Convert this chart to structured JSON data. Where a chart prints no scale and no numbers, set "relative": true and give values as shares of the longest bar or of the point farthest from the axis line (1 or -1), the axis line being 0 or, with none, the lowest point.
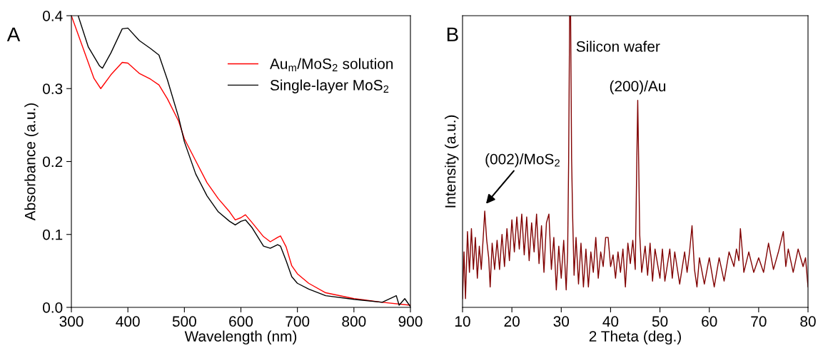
{
  "chart_data": [
    {
      "type": "line",
      "title": "A",
      "xlabel": "Wavelength (nm)",
      "ylabel": "Absorbance (a.u.)",
      "xlim": [
        300,
        900
      ],
      "xticks": [
        300,
        400,
        500,
        600,
        700,
        800,
        900
      ],
      "ylim": [
        0,
        0.4
      ],
      "yticks": [
        {
          "value": 0,
          "label": "0.0"
        },
        0.1,
        0.2,
        0.3,
        0.4
      ],
      "legend": "top right",
      "grid": false,
      "series": [
        {
          "name": "Au$_{m}$/MoS$_{2}$ solution",
          "color": "#ff0000",
          "x": [
            300,
            320,
            340,
            352,
            370,
            390,
            400,
            420,
            440,
            455,
            470,
            490,
            500,
            520,
            540,
            560,
            580,
            590,
            600,
            608,
            620,
            640,
            652,
            665,
            670,
            680,
            690,
            700,
            720,
            750,
            800,
            850,
            900
          ],
          "values": [
            0.4,
            0.357,
            0.314,
            0.3,
            0.319,
            0.336,
            0.335,
            0.321,
            0.313,
            0.305,
            0.286,
            0.255,
            0.231,
            0.201,
            0.171,
            0.149,
            0.131,
            0.12,
            0.123,
            0.127,
            0.116,
            0.097,
            0.09,
            0.096,
            0.098,
            0.083,
            0.057,
            0.046,
            0.033,
            0.02,
            0.012,
            0.007,
            0.003
          ]
        },
        {
          "name": "Single-layer MoS$_{2}$",
          "color": "#000000",
          "x": [
            312,
            330,
            350,
            355,
            370,
            390,
            400,
            420,
            440,
            455,
            470,
            490,
            500,
            520,
            540,
            560,
            580,
            590,
            600,
            608,
            620,
            640,
            652,
            665,
            670,
            680,
            690,
            700,
            720,
            750,
            800,
            850,
            875,
            880,
            890,
            900
          ],
          "values": [
            0.4,
            0.357,
            0.331,
            0.328,
            0.349,
            0.382,
            0.383,
            0.366,
            0.355,
            0.346,
            0.312,
            0.26,
            0.227,
            0.183,
            0.153,
            0.131,
            0.118,
            0.113,
            0.118,
            0.12,
            0.109,
            0.084,
            0.081,
            0.086,
            0.084,
            0.064,
            0.042,
            0.033,
            0.025,
            0.016,
            0.011,
            0.007,
            0.016,
            0.003,
            0.012,
            0.001
          ]
        }
      ]
    },
    {
      "type": "line",
      "title": "B",
      "xlabel": "2 Theta (deg.)",
      "ylabel": "Intensity (a.u.)",
      "xlim": [
        10,
        80
      ],
      "xticks": [
        10,
        20,
        30,
        40,
        50,
        60,
        70,
        80
      ],
      "relative": true,
      "tick_labels": "x",
      "grid": false,
      "legend": false,
      "annotations": [
        "Silicon wafer",
        {
          "text": "(200)/Au",
          "x": 45.5,
          "y": 0.71
        },
        {
          "text": "(002)/MoS$_{2}$",
          "x": 14.5,
          "y": 0.33
        }
      ],
      "series": [
        {
          "color": "#800000",
          "x": [
            10.0,
            10.3,
            10.6,
            11.0,
            11.4,
            11.8,
            12.2,
            12.6,
            13.0,
            13.4,
            13.8,
            14.3,
            14.5,
            14.9,
            15.3,
            15.6,
            16.0,
            16.5,
            17.0,
            17.5,
            18.0,
            18.5,
            19.0,
            19.5,
            20.0,
            20.5,
            21.0,
            21.5,
            22.0,
            22.5,
            23.0,
            23.5,
            24.0,
            24.5,
            25.0,
            25.5,
            26.0,
            26.5,
            27.0,
            27.5,
            28.0,
            28.5,
            29.0,
            29.5,
            30.0,
            30.5,
            31.0,
            31.3,
            31.5,
            31.7,
            31.9,
            32.1,
            32.3,
            32.6,
            33.0,
            33.5,
            34.0,
            34.5,
            35.0,
            35.5,
            36.0,
            36.5,
            37.0,
            37.5,
            38.0,
            38.5,
            39.0,
            39.5,
            40.0,
            40.5,
            41.0,
            41.5,
            42.0,
            42.5,
            43.0,
            43.5,
            44.0,
            44.5,
            45.0,
            45.3,
            45.5,
            45.7,
            45.9,
            46.3,
            47.0,
            47.5,
            48.0,
            48.5,
            49.0,
            50.0,
            50.5,
            51.0,
            52.0,
            52.5,
            53.0,
            54.0,
            55.0,
            55.5,
            56.0,
            56.5,
            57.0,
            57.5,
            58.0,
            59.0,
            60.0,
            61.0,
            62.0,
            63.0,
            64.0,
            65.0,
            65.5,
            66.0,
            66.3,
            66.7,
            67.0,
            68.0,
            69.0,
            70.0,
            71.0,
            72.0,
            73.0,
            74.0,
            75.0,
            75.5,
            76.0,
            77.0,
            78.0,
            79.0,
            79.5,
            80.0
          ],
          "values": [
            0.03,
            0.19,
            0.03,
            0.26,
            0.12,
            0.27,
            0.13,
            0.24,
            0.1,
            0.21,
            0.13,
            0.27,
            0.33,
            0.23,
            0.17,
            0.07,
            0.22,
            0.13,
            0.23,
            0.13,
            0.25,
            0.14,
            0.27,
            0.16,
            0.3,
            0.19,
            0.31,
            0.2,
            0.32,
            0.18,
            0.31,
            0.16,
            0.29,
            0.19,
            0.32,
            0.15,
            0.28,
            0.12,
            0.29,
            0.32,
            0.13,
            0.24,
            0.06,
            0.21,
            0.1,
            0.23,
            0.06,
            0.19,
            0.5,
            1.0,
            1.0,
            0.51,
            0.32,
            0.11,
            0.24,
            0.08,
            0.22,
            0.07,
            0.2,
            0.07,
            0.19,
            0.12,
            0.24,
            0.1,
            0.19,
            0.14,
            0.24,
            0.24,
            0.14,
            0.18,
            0.1,
            0.19,
            0.12,
            0.2,
            0.07,
            0.22,
            0.15,
            0.23,
            0.13,
            0.49,
            0.71,
            0.49,
            0.25,
            0.12,
            0.21,
            0.11,
            0.22,
            0.09,
            0.2,
            0.1,
            0.2,
            0.09,
            0.2,
            0.1,
            0.19,
            0.08,
            0.19,
            0.12,
            0.19,
            0.28,
            0.13,
            0.07,
            0.17,
            0.08,
            0.17,
            0.07,
            0.17,
            0.09,
            0.19,
            0.14,
            0.2,
            0.16,
            0.27,
            0.19,
            0.12,
            0.19,
            0.12,
            0.17,
            0.12,
            0.22,
            0.13,
            0.19,
            0.26,
            0.14,
            0.2,
            0.12,
            0.2,
            0.14,
            0.17,
            0.07
          ]
        }
      ]
    }
  ]
}
